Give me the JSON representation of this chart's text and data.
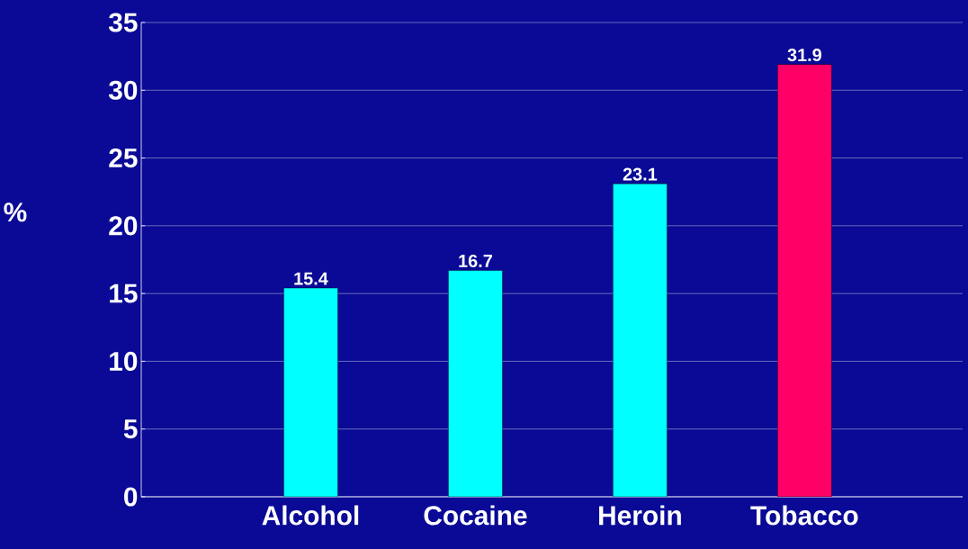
{
  "chart_data": {
    "type": "bar",
    "ylabel": "%",
    "categories": [
      "Alcohol",
      "Cocaine",
      "Heroin",
      "Tobacco"
    ],
    "values": [
      15.4,
      16.7,
      23.1,
      31.9
    ],
    "colors": [
      "#00ffff",
      "#00ffff",
      "#00ffff",
      "#ff0066"
    ],
    "ylim": [
      0,
      35
    ],
    "yticks": [
      0,
      5,
      10,
      15,
      20,
      25,
      30,
      35
    ],
    "grid": "y",
    "data_labels": true
  }
}
